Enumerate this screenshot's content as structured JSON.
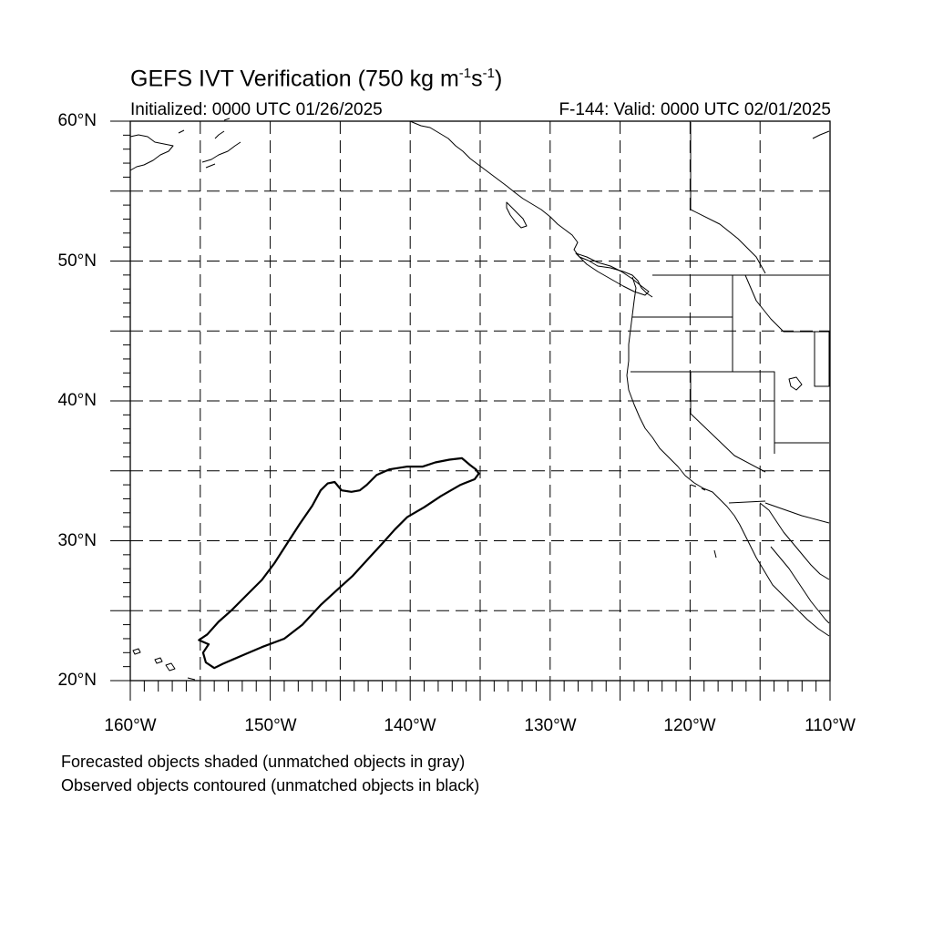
{
  "title": {
    "prefix": "GEFS IVT Verification (750 kg m",
    "exp1": "-1",
    "mid": "s",
    "exp2": "-1",
    "suffix": ")"
  },
  "subtitle_left": "Initialized: 0000 UTC 01/26/2025",
  "subtitle_right": "F-144: Valid: 0000 UTC 02/01/2025",
  "lat_labels": [
    "60°N",
    "50°N",
    "40°N",
    "30°N",
    "20°N"
  ],
  "lon_labels": [
    "160°W",
    "150°W",
    "140°W",
    "130°W",
    "120°W",
    "110°W"
  ],
  "legend": {
    "line1": "Forecasted objects shaded (unmatched objects in gray)",
    "line2": "Observed objects contoured (unmatched objects in black)"
  },
  "map": {
    "lon_range": [
      -160,
      -110
    ],
    "lat_range": [
      20,
      60
    ],
    "grid_spacing_deg": 5,
    "gridline_style": "dashed",
    "line_color": "#000000"
  },
  "observed_objects": [
    {
      "status": "unmatched",
      "color": "#000000",
      "outline_lonlat": [
        [
          -154.5,
          23.3
        ],
        [
          -153.7,
          24.2
        ],
        [
          -152.8,
          25.0
        ],
        [
          -151.8,
          26.0
        ],
        [
          -150.6,
          27.2
        ],
        [
          -149.7,
          28.4
        ],
        [
          -148.8,
          29.8
        ],
        [
          -147.9,
          31.2
        ],
        [
          -147.0,
          32.5
        ],
        [
          -146.4,
          33.6
        ],
        [
          -145.9,
          34.1
        ],
        [
          -145.4,
          34.2
        ],
        [
          -144.9,
          33.6
        ],
        [
          -144.2,
          33.5
        ],
        [
          -143.6,
          33.6
        ],
        [
          -143.1,
          34.0
        ],
        [
          -142.4,
          34.7
        ],
        [
          -141.5,
          35.1
        ],
        [
          -140.2,
          35.3
        ],
        [
          -139.1,
          35.3
        ],
        [
          -138.2,
          35.6
        ],
        [
          -137.2,
          35.8
        ],
        [
          -136.3,
          35.9
        ],
        [
          -135.7,
          35.4
        ],
        [
          -135.3,
          35.1
        ],
        [
          -135.1,
          34.8
        ],
        [
          -135.4,
          34.4
        ],
        [
          -136.4,
          34.0
        ],
        [
          -137.8,
          33.2
        ],
        [
          -139.0,
          32.4
        ],
        [
          -140.2,
          31.7
        ],
        [
          -141.1,
          30.8
        ],
        [
          -142.0,
          29.8
        ],
        [
          -143.1,
          28.6
        ],
        [
          -144.1,
          27.5
        ],
        [
          -145.2,
          26.5
        ],
        [
          -146.4,
          25.4
        ],
        [
          -147.7,
          24.0
        ],
        [
          -149.0,
          23.0
        ],
        [
          -150.6,
          22.4
        ],
        [
          -152.0,
          21.8
        ],
        [
          -153.4,
          21.2
        ],
        [
          -154.0,
          20.9
        ],
        [
          -154.6,
          21.3
        ],
        [
          -154.8,
          22.0
        ],
        [
          -154.4,
          22.6
        ],
        [
          -155.1,
          22.9
        ],
        [
          -154.5,
          23.3
        ]
      ]
    }
  ],
  "forecast_objects": []
}
